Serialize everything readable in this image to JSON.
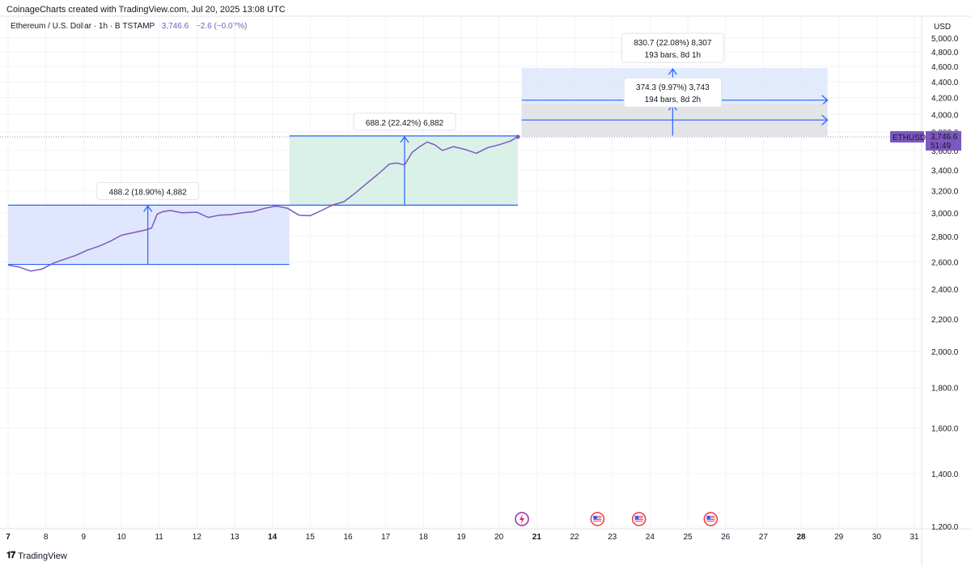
{
  "header": {
    "attribution": "CoinageCharts created with TradingView.com, Jul 20, 2025 13:08 UTC"
  },
  "legend": {
    "symbol_desc": "Ethereum / U.S. Dollar · 1h · BITSTAMP",
    "price": "3,746.6",
    "change": "−2.6 (−0.07%)"
  },
  "axis": {
    "currency": "USD"
  },
  "price_tag": {
    "symbol": "ETHUSD",
    "price": "3,746.6",
    "countdown": "51:49"
  },
  "footer": {
    "logo_text": "TradingView"
  },
  "colors": {
    "line": "#7e57c2",
    "range_blue": "#2962ff",
    "range_fill_blue": "#dbe3fd",
    "range_fill_green": "#d6f0e6",
    "proj_fill_blue": "#dde8fc",
    "proj_fill_grey": "#e3e3e3",
    "tag_bg": "#7e57c2"
  },
  "chart_data": {
    "type": "line",
    "series": [
      {
        "name": "ETHUSD",
        "x": [
          7.0,
          7.3,
          7.6,
          7.9,
          8.2,
          8.5,
          8.8,
          9.1,
          9.4,
          9.7,
          10.0,
          10.3,
          10.6,
          10.8,
          10.95,
          11.1,
          11.3,
          11.6,
          12.0,
          12.3,
          12.6,
          12.9,
          13.2,
          13.5,
          13.8,
          14.1,
          14.4,
          14.7,
          15.0,
          15.3,
          15.6,
          15.9,
          16.2,
          16.5,
          16.8,
          17.1,
          17.3,
          17.5,
          17.7,
          17.9,
          18.1,
          18.3,
          18.5,
          18.8,
          19.1,
          19.4,
          19.7,
          20.0,
          20.3,
          20.5
        ],
        "y": [
          2575,
          2560,
          2530,
          2545,
          2590,
          2620,
          2650,
          2690,
          2720,
          2760,
          2810,
          2830,
          2850,
          2870,
          2990,
          3010,
          3020,
          3000,
          3005,
          2960,
          2980,
          2985,
          3000,
          3010,
          3040,
          3060,
          3040,
          2980,
          2975,
          3020,
          3070,
          3100,
          3180,
          3270,
          3360,
          3460,
          3470,
          3450,
          3580,
          3640,
          3690,
          3660,
          3600,
          3640,
          3610,
          3570,
          3630,
          3660,
          3700,
          3746.6
        ]
      }
    ],
    "xaxis": {
      "ticks": [
        {
          "v": 7,
          "label": "7",
          "bold": true
        },
        {
          "v": 8,
          "label": "8",
          "bold": false
        },
        {
          "v": 9,
          "label": "9",
          "bold": false
        },
        {
          "v": 10,
          "label": "10",
          "bold": false
        },
        {
          "v": 11,
          "label": "11",
          "bold": false
        },
        {
          "v": 12,
          "label": "12",
          "bold": false
        },
        {
          "v": 13,
          "label": "13",
          "bold": false
        },
        {
          "v": 14,
          "label": "14",
          "bold": true
        },
        {
          "v": 15,
          "label": "15",
          "bold": false
        },
        {
          "v": 16,
          "label": "16",
          "bold": false
        },
        {
          "v": 17,
          "label": "17",
          "bold": false
        },
        {
          "v": 18,
          "label": "18",
          "bold": false
        },
        {
          "v": 19,
          "label": "19",
          "bold": false
        },
        {
          "v": 20,
          "label": "20",
          "bold": false
        },
        {
          "v": 21,
          "label": "21",
          "bold": true
        },
        {
          "v": 22,
          "label": "22",
          "bold": false
        },
        {
          "v": 23,
          "label": "23",
          "bold": false
        },
        {
          "v": 24,
          "label": "24",
          "bold": false
        },
        {
          "v": 25,
          "label": "25",
          "bold": false
        },
        {
          "v": 26,
          "label": "26",
          "bold": false
        },
        {
          "v": 27,
          "label": "27",
          "bold": false
        },
        {
          "v": 28,
          "label": "28",
          "bold": true
        },
        {
          "v": 29,
          "label": "29",
          "bold": false
        },
        {
          "v": 30,
          "label": "30",
          "bold": false
        },
        {
          "v": 31,
          "label": "31",
          "bold": false
        }
      ],
      "range": [
        7.0,
        31.0
      ]
    },
    "yaxis": {
      "ticks": [
        {
          "v": 1200,
          "label": "1,200.0"
        },
        {
          "v": 1400,
          "label": "1,400.0"
        },
        {
          "v": 1600,
          "label": "1,600.0"
        },
        {
          "v": 1800,
          "label": "1,800.0"
        },
        {
          "v": 2000,
          "label": "2,000.0"
        },
        {
          "v": 2200,
          "label": "2,200.0"
        },
        {
          "v": 2400,
          "label": "2,400.0"
        },
        {
          "v": 2600,
          "label": "2,600.0"
        },
        {
          "v": 2800,
          "label": "2,800.0"
        },
        {
          "v": 3000,
          "label": "3,000.0"
        },
        {
          "v": 3200,
          "label": "3,200.0"
        },
        {
          "v": 3400,
          "label": "3,400.0"
        },
        {
          "v": 3600,
          "label": "3,600.0"
        },
        {
          "v": 3800,
          "label": "3,800.0"
        },
        {
          "v": 4000,
          "label": "4,000.0"
        },
        {
          "v": 4200,
          "label": "4,200.0"
        },
        {
          "v": 4400,
          "label": "4,400.0"
        },
        {
          "v": 4600,
          "label": "4,600.0"
        },
        {
          "v": 4800,
          "label": "4,800.0"
        },
        {
          "v": 5000,
          "label": "5,000.0"
        }
      ],
      "range": [
        1200,
        5000
      ],
      "scale": "log"
    },
    "last_price": 3746.6,
    "ranges": [
      {
        "name": "range-1",
        "x0": 7.0,
        "x1": 14.45,
        "y0": 2580,
        "y1": 3068,
        "arrow_x": 10.7,
        "fill": "#dbe3fd",
        "label": "488.2 (18.90%) 4,882"
      },
      {
        "name": "range-2",
        "x0": 14.45,
        "x1": 20.5,
        "y0": 3068,
        "y1": 3756,
        "arrow_x": 17.5,
        "fill": "#d6f0e6",
        "label": "688.2 (22.42%) 6,882"
      }
    ],
    "projections": [
      {
        "name": "projection-blue",
        "x0": 20.6,
        "x1": 28.7,
        "y0": 3750,
        "y1": 4580,
        "arrow_x": 24.6,
        "arrow_y0": 3760,
        "arrow_y1": 4580,
        "line_y": 4170,
        "fill": "#dde8fc",
        "label1": "830.7 (22.08%) 8,307",
        "label2": "193 bars, 8d 1h"
      },
      {
        "name": "projection-grey",
        "x0": 20.6,
        "x1": 28.7,
        "y0": 3750,
        "y1": 4125,
        "arrow_x": 24.6,
        "arrow_y0": 3760,
        "arrow_y1": 4125,
        "line_y": 3935,
        "fill": "#e3e3e3",
        "label1": "374.3 (9.97%) 3,743",
        "label2": "194 bars, 8d 2h"
      }
    ],
    "events": [
      {
        "x": 20.5,
        "name": "lightning-event-icon"
      },
      {
        "x": 22.5,
        "name": "us-flag-event-icon"
      },
      {
        "x": 23.6,
        "name": "us-flag-event-icon"
      },
      {
        "x": 25.5,
        "name": "us-flag-event-icon"
      }
    ]
  }
}
